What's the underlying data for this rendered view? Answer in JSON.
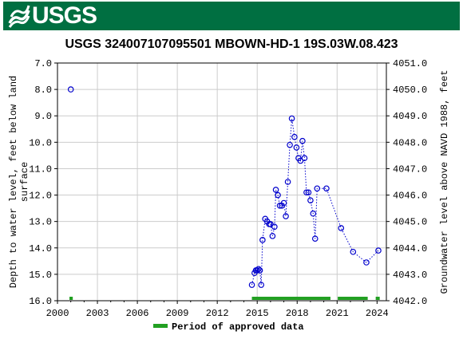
{
  "header": {
    "logo_text": "USGS",
    "banner_color": "#006f41"
  },
  "chart_data": {
    "type": "scatter",
    "title": "USGS 324007107095501 MBOWN-HD-1 19S.03W.08.423",
    "ylabel_left": "Depth to water level, feet below land surface",
    "ylabel_left_lines": [
      "Depth to water level, feet below land",
      "surface"
    ],
    "ylabel_right": "Groundwater level above NAVD 1988, feet",
    "x_ticks": [
      2000,
      2003,
      2006,
      2009,
      2012,
      2015,
      2018,
      2021,
      2024
    ],
    "xlim": [
      2000,
      2024.7
    ],
    "ylim_left": [
      16.0,
      7.0
    ],
    "y_ticks_left": [
      "7.0",
      "8.0",
      "9.0",
      "10.0",
      "11.0",
      "12.0",
      "13.0",
      "14.0",
      "15.0",
      "16.0"
    ],
    "ylim_right": [
      4042.0,
      4051.0
    ],
    "y_ticks_right": [
      "4051.0",
      "4050.0",
      "4049.0",
      "4048.0",
      "4047.0",
      "4046.0",
      "4045.0",
      "4044.0",
      "4043.0",
      "4042.0"
    ],
    "series": [
      {
        "marker": "open-circle",
        "color": "#0000cc",
        "connected": false,
        "x": [
          2001.0
        ],
        "y": [
          8.0
        ]
      },
      {
        "marker": "open-circle",
        "color": "#0000cc",
        "line_style": "dotted",
        "connected": true,
        "x": [
          2014.6,
          2014.8,
          2014.9,
          2015.0,
          2015.1,
          2015.2,
          2015.3,
          2015.4,
          2015.6,
          2015.75,
          2015.9,
          2016.0,
          2016.15,
          2016.3,
          2016.4,
          2016.55,
          2016.7,
          2016.85,
          2017.0,
          2017.15,
          2017.3,
          2017.45,
          2017.6,
          2017.8,
          2017.95,
          2018.1,
          2018.25,
          2018.4,
          2018.55,
          2018.7,
          2018.85,
          2019.0,
          2019.2,
          2019.35,
          2019.5,
          2020.2,
          2021.3,
          2022.2,
          2023.2,
          2024.1
        ],
        "y": [
          15.4,
          14.95,
          14.85,
          14.85,
          14.8,
          14.85,
          15.4,
          13.7,
          12.9,
          13.0,
          13.1,
          13.1,
          13.55,
          13.2,
          11.8,
          12.0,
          12.4,
          12.4,
          12.3,
          12.8,
          11.5,
          10.1,
          9.1,
          9.8,
          10.2,
          10.6,
          10.7,
          9.95,
          10.6,
          11.9,
          11.9,
          12.2,
          12.7,
          13.65,
          11.75,
          11.75,
          13.25,
          14.15,
          14.55,
          14.1
        ]
      }
    ],
    "approved_periods": [
      [
        2000.9,
        2001.15
      ],
      [
        2014.6,
        2020.5
      ],
      [
        2021.05,
        2023.3
      ],
      [
        2023.9,
        2024.2
      ]
    ],
    "approved_color": "#22a022",
    "legend_label": "Period of approved data",
    "legend_position": "bottom-center"
  }
}
